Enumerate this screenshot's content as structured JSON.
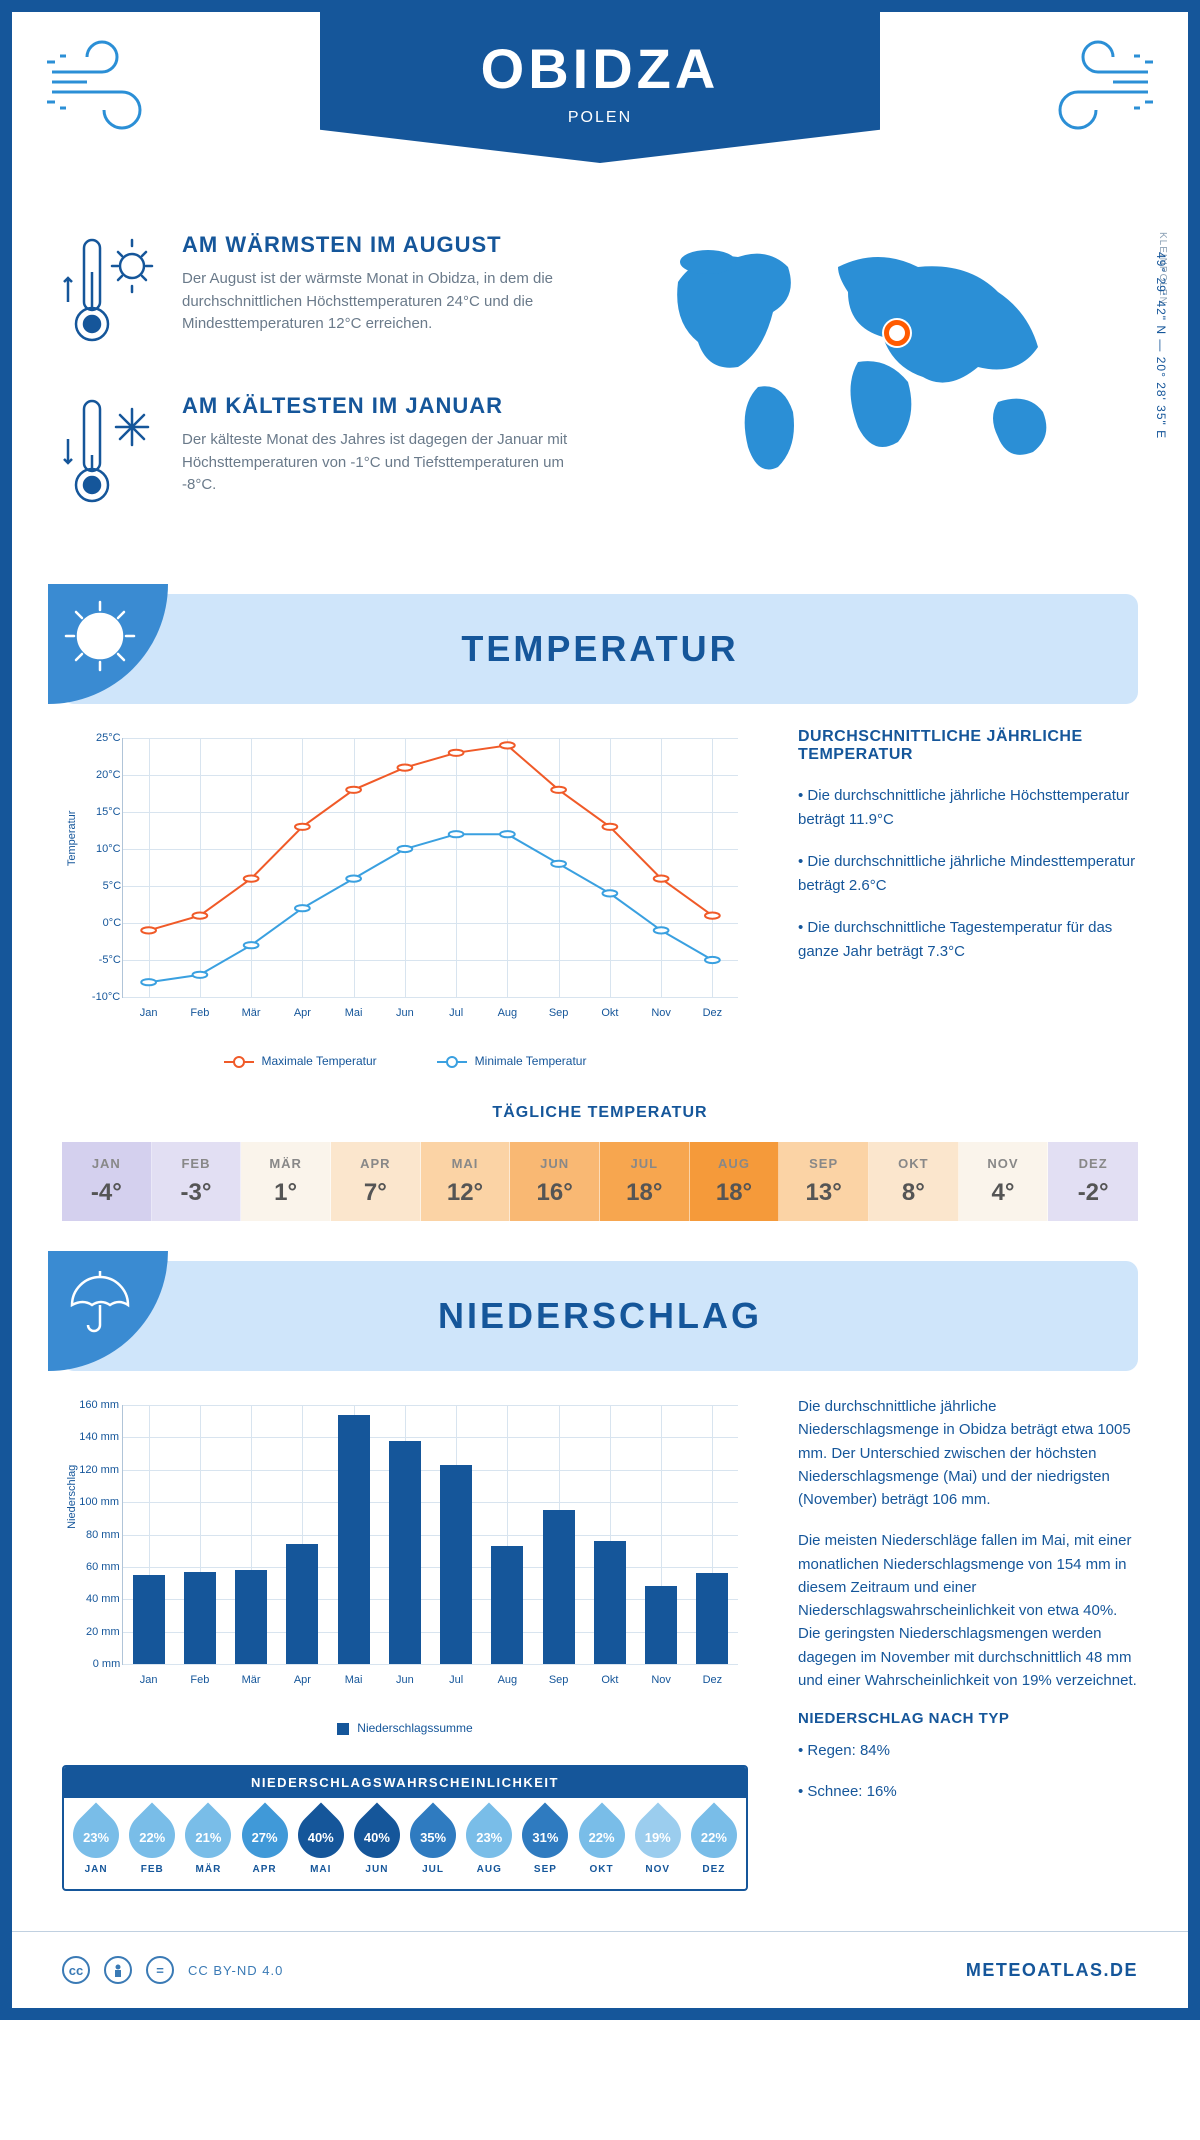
{
  "header": {
    "title": "OBIDZA",
    "subtitle": "POLEN"
  },
  "coords": "49° 29' 42\" N — 20° 28' 35\" E",
  "region": "KLEINPOLEN",
  "pin": {
    "left_pct": 53.5,
    "top_pct": 34
  },
  "facts": {
    "warm": {
      "title": "AM WÄRMSTEN IM AUGUST",
      "body": "Der August ist der wärmste Monat in Obidza, in dem die durchschnittlichen Höchsttemperaturen 24°C und die Mindesttemperaturen 12°C erreichen."
    },
    "cold": {
      "title": "AM KÄLTESTEN IM JANUAR",
      "body": "Der kälteste Monat des Jahres ist dagegen der Januar mit Höchsttemperaturen von -1°C und Tiefsttemperaturen um -8°C."
    }
  },
  "sections": {
    "temp": "TEMPERATUR",
    "precip": "NIEDERSCHLAG"
  },
  "temp_chart": {
    "type": "line",
    "months": [
      "Jan",
      "Feb",
      "Mär",
      "Apr",
      "Mai",
      "Jun",
      "Jul",
      "Aug",
      "Sep",
      "Okt",
      "Nov",
      "Dez"
    ],
    "max": [
      -1,
      1,
      6,
      13,
      18,
      21,
      23,
      24,
      18,
      13,
      6,
      1
    ],
    "min": [
      -8,
      -7,
      -3,
      2,
      6,
      10,
      12,
      12,
      8,
      4,
      -1,
      -5
    ],
    "ylim": [
      -10,
      25
    ],
    "ytick_step": 5,
    "ylabel": "Temperatur",
    "colors": {
      "max": "#f05a28",
      "min": "#3aa0e0"
    },
    "grid_color": "#d8e4ef",
    "line_width": 2,
    "marker_size": 5,
    "legend": {
      "max": "Maximale Temperatur",
      "min": "Minimale Temperatur"
    }
  },
  "temp_aside": {
    "title": "DURCHSCHNITTLICHE JÄHRLICHE TEMPERATUR",
    "p1": "• Die durchschnittliche jährliche Höchsttemperatur beträgt 11.9°C",
    "p2": "• Die durchschnittliche jährliche Mindesttemperatur beträgt 2.6°C",
    "p3": "• Die durchschnittliche Tagestemperatur für das ganze Jahr beträgt 7.3°C"
  },
  "daily_temp": {
    "title": "TÄGLICHE TEMPERATUR",
    "months": [
      "JAN",
      "FEB",
      "MÄR",
      "APR",
      "MAI",
      "JUN",
      "JUL",
      "AUG",
      "SEP",
      "OKT",
      "NOV",
      "DEZ"
    ],
    "values": [
      "-4°",
      "-3°",
      "1°",
      "7°",
      "12°",
      "16°",
      "18°",
      "18°",
      "13°",
      "8°",
      "4°",
      "-2°"
    ],
    "colors": [
      "#d4d0ee",
      "#e2dff3",
      "#faf4eb",
      "#fbe6cd",
      "#fbd3a5",
      "#f9b873",
      "#f7a64f",
      "#f59a3a",
      "#fbd3a5",
      "#fbe6cd",
      "#faf4eb",
      "#e2dff3"
    ]
  },
  "precip_chart": {
    "type": "bar",
    "months": [
      "Jan",
      "Feb",
      "Mär",
      "Apr",
      "Mai",
      "Jun",
      "Jul",
      "Aug",
      "Sep",
      "Okt",
      "Nov",
      "Dez"
    ],
    "values": [
      55,
      57,
      58,
      74,
      154,
      138,
      123,
      73,
      95,
      76,
      48,
      56
    ],
    "ylim": [
      0,
      160
    ],
    "ytick_step": 20,
    "ylabel": "Niederschlag",
    "bar_color": "#15569a",
    "grid_color": "#d8e4ef",
    "bar_width_pct": 5.2,
    "legend": "Niederschlagssumme"
  },
  "precip_aside": {
    "p1": "Die durchschnittliche jährliche Niederschlagsmenge in Obidza beträgt etwa 1005 mm. Der Unterschied zwischen der höchsten Niederschlagsmenge (Mai) und der niedrigsten (November) beträgt 106 mm.",
    "p2": "Die meisten Niederschläge fallen im Mai, mit einer monatlichen Niederschlagsmenge von 154 mm in diesem Zeitraum und einer Niederschlagswahrscheinlichkeit von etwa 40%. Die geringsten Niederschlagsmengen werden dagegen im November mit durchschnittlich 48 mm und einer Wahrscheinlichkeit von 19% verzeichnet.",
    "type_title": "NIEDERSCHLAG NACH TYP",
    "type1": "• Regen: 84%",
    "type2": "• Schnee: 16%"
  },
  "prob": {
    "title": "NIEDERSCHLAGSWAHRSCHEINLICHKEIT",
    "months": [
      "JAN",
      "FEB",
      "MÄR",
      "APR",
      "MAI",
      "JUN",
      "JUL",
      "AUG",
      "SEP",
      "OKT",
      "NOV",
      "DEZ"
    ],
    "values": [
      "23%",
      "22%",
      "21%",
      "27%",
      "40%",
      "40%",
      "35%",
      "23%",
      "31%",
      "22%",
      "19%",
      "22%"
    ],
    "colors": [
      "#79bde8",
      "#79bde8",
      "#79bde8",
      "#4099d8",
      "#15569a",
      "#15569a",
      "#2f7bc0",
      "#79bde8",
      "#2f7bc0",
      "#79bde8",
      "#9bcdee",
      "#79bde8"
    ]
  },
  "footer": {
    "license": "CC BY-ND 4.0",
    "site": "METEOATLAS.DE"
  }
}
